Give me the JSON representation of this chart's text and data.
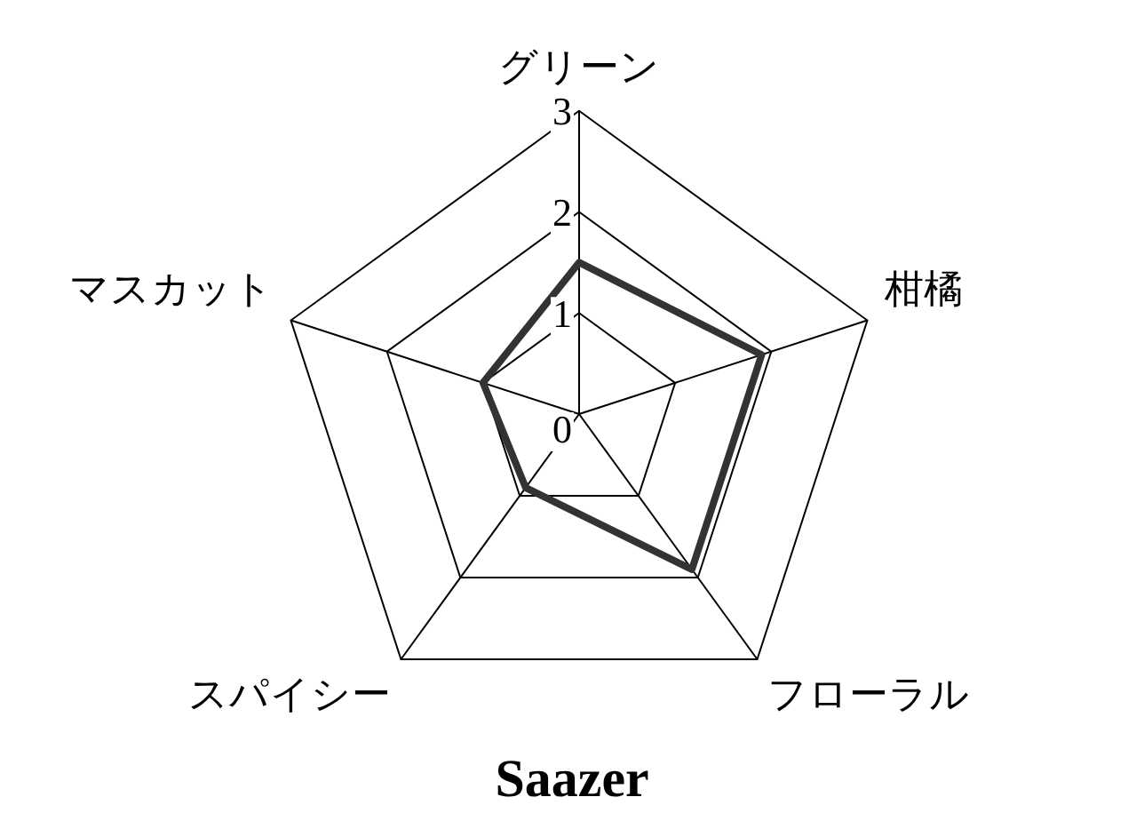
{
  "chart_data": {
    "type": "radar",
    "title": "Saazer",
    "categories": [
      "グリーン",
      "柑橘",
      "フローラル",
      "スパイシー",
      "マスカット"
    ],
    "series": [
      {
        "color": "#333333",
        "values": [
          1.5,
          1.9,
          1.9,
          0.9,
          1.0
        ]
      }
    ],
    "ylim": [
      0,
      3
    ],
    "yticks": [
      0,
      1,
      2,
      3
    ],
    "grid": true,
    "legend": false,
    "marker": "none",
    "line_style": "solid"
  }
}
